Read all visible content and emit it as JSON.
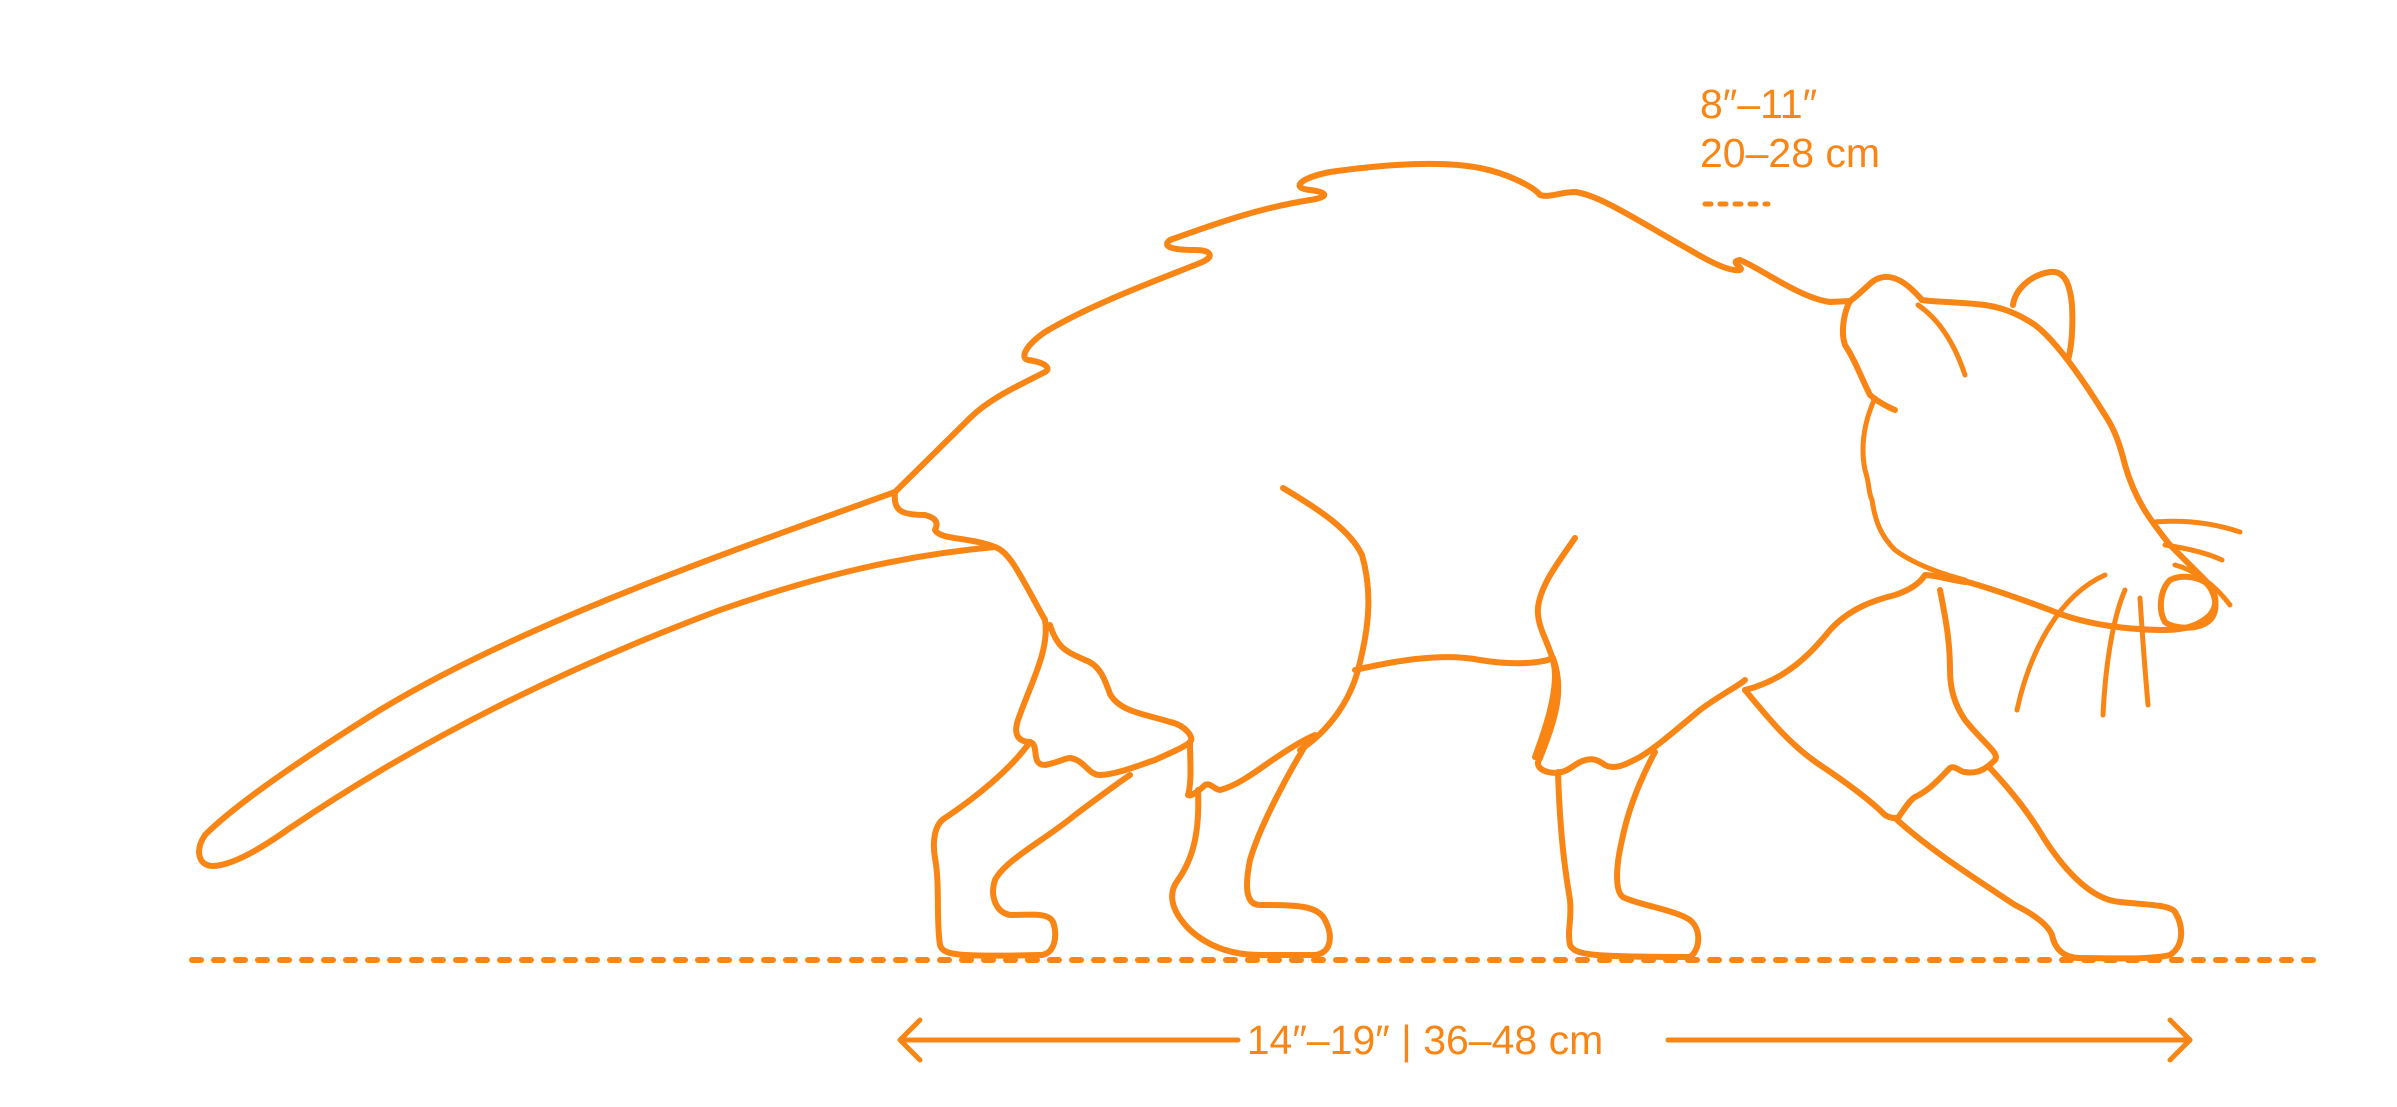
{
  "colors": {
    "accent": "#F98515",
    "background": "#FFFFFF"
  },
  "height_label": {
    "imperial": "8″–11″",
    "metric": "20–28 cm"
  },
  "length_label": {
    "text": "14″–19″ | 36–48 cm"
  }
}
